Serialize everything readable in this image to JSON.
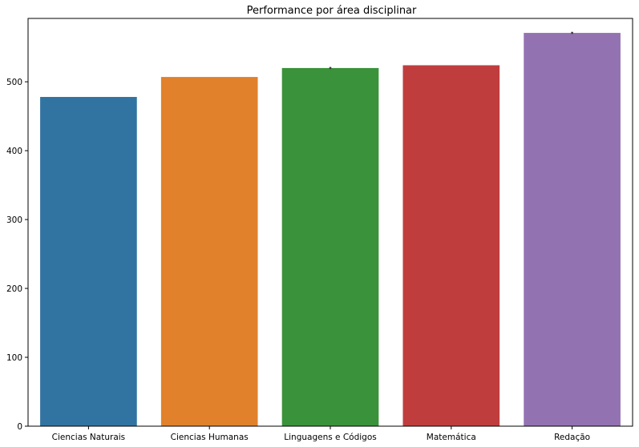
{
  "chart_data": {
    "type": "bar",
    "title": "Performance por área disciplinar",
    "xlabel": "",
    "ylabel": "",
    "categories": [
      "Ciencias Naturais",
      "Ciencias Humanas",
      "Linguagens e Códigos",
      "Matemática",
      "Redação"
    ],
    "values": [
      478,
      507,
      520,
      524,
      571
    ],
    "error_bars": [
      [
        478,
        478
      ],
      [
        507,
        507
      ],
      [
        518.5,
        521.5
      ],
      [
        524,
        524
      ],
      [
        569.5,
        572.5
      ]
    ],
    "colors": [
      "#3274a1",
      "#e1812c",
      "#3a923a",
      "#c03d3e",
      "#9372b2"
    ],
    "ylim": [
      0,
      592
    ],
    "yticks": [
      0,
      100,
      200,
      300,
      400,
      500
    ],
    "grid": false,
    "legend": "none"
  }
}
